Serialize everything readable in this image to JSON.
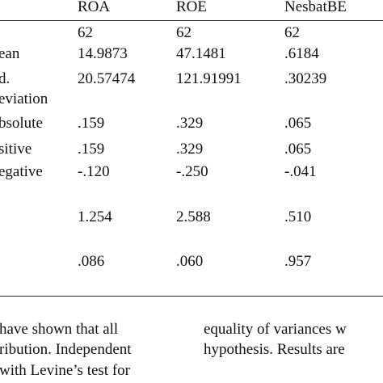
{
  "table": {
    "columns": [
      "ROA",
      "ROE",
      "NesbatBE"
    ],
    "rows": [
      {
        "label": "",
        "values": [
          "62",
          "62",
          "62"
        ]
      },
      {
        "label": "ean",
        "values": [
          "14.9873",
          "47.1481",
          ".6184"
        ]
      },
      {
        "label": "d.",
        "values": [
          "20.57474",
          "121.91991",
          ".30239"
        ]
      },
      {
        "label": "eviation",
        "values": [
          "",
          "",
          ""
        ]
      },
      {
        "label": "bsolute",
        "values": [
          ".159",
          ".329",
          ".065"
        ]
      },
      {
        "label": "sitive",
        "values": [
          ".159",
          ".329",
          ".065"
        ]
      },
      {
        "label": "egative",
        "values": [
          "-.120",
          "-.250",
          "-.041"
        ]
      },
      {
        "label": "",
        "values": [
          "1.254",
          "2.588",
          ".510"
        ]
      },
      {
        "label": "",
        "values": [
          ".086",
          ".060",
          ".957"
        ]
      }
    ]
  },
  "body_text": {
    "left_lines": [
      "have shown that all",
      "ribution. Independent",
      "with Levine’s test for"
    ],
    "right_lines": [
      "equality of variances w",
      "hypothesis. Results are"
    ]
  }
}
